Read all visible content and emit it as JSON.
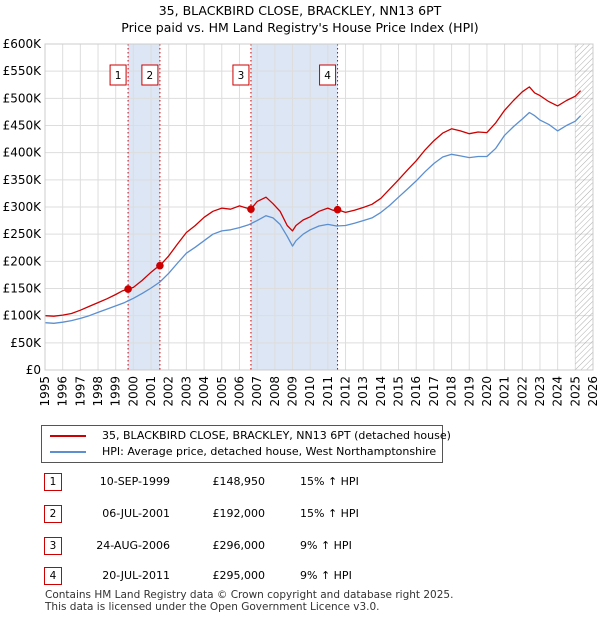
{
  "title": {
    "line1": "35, BLACKBIRD CLOSE, BRACKLEY, NN13 6PT",
    "line2": "Price paid vs. HM Land Registry's House Price Index (HPI)"
  },
  "colors": {
    "property_line": "#cc0000",
    "hpi_line": "#5b8fd0",
    "shade": "#dce6f5",
    "grid": "#dddddd",
    "marker_border": "#cc0000",
    "future_hatch": "#999999"
  },
  "chart_data": {
    "type": "line",
    "title": "Price paid vs. HM Land Registry's House Price Index (HPI)",
    "xlabel": "",
    "ylabel": "",
    "xlim": [
      1995,
      2026
    ],
    "ylim": [
      0,
      600000
    ],
    "x_ticks": [
      "1995",
      "1996",
      "1997",
      "1998",
      "1999",
      "2000",
      "2001",
      "2002",
      "2003",
      "2004",
      "2005",
      "2006",
      "2007",
      "2008",
      "2009",
      "2010",
      "2011",
      "2012",
      "2013",
      "2014",
      "2015",
      "2016",
      "2017",
      "2018",
      "2019",
      "2020",
      "2021",
      "2022",
      "2023",
      "2024",
      "2025",
      "2026"
    ],
    "y_ticks": [
      {
        "value": 0,
        "label": "£0"
      },
      {
        "value": 50000,
        "label": "£50K"
      },
      {
        "value": 100000,
        "label": "£100K"
      },
      {
        "value": 150000,
        "label": "£150K"
      },
      {
        "value": 200000,
        "label": "£200K"
      },
      {
        "value": 250000,
        "label": "£250K"
      },
      {
        "value": 300000,
        "label": "£300K"
      },
      {
        "value": 350000,
        "label": "£350K"
      },
      {
        "value": 400000,
        "label": "£400K"
      },
      {
        "value": 450000,
        "label": "£450K"
      },
      {
        "value": 500000,
        "label": "£500K"
      },
      {
        "value": 550000,
        "label": "£550K"
      },
      {
        "value": 600000,
        "label": "£600K"
      }
    ],
    "grid": true,
    "series": [
      {
        "name": "35, BLACKBIRD CLOSE, BRACKLEY, NN13 6PT (detached house)",
        "x": [
          1995.0,
          1995.5,
          1996.0,
          1996.5,
          1997.0,
          1997.5,
          1998.0,
          1998.5,
          1999.0,
          1999.4,
          1999.7,
          2000.0,
          2000.5,
          2001.0,
          2001.3,
          2001.5,
          2002.0,
          2002.5,
          2003.0,
          2003.5,
          2004.0,
          2004.5,
          2005.0,
          2005.5,
          2006.0,
          2006.3,
          2006.65,
          2007.0,
          2007.5,
          2007.9,
          2008.3,
          2008.7,
          2009.0,
          2009.2,
          2009.6,
          2010.0,
          2010.5,
          2011.0,
          2011.3,
          2011.55,
          2012.0,
          2012.5,
          2013.0,
          2013.5,
          2014.0,
          2014.5,
          2015.0,
          2015.5,
          2016.0,
          2016.5,
          2017.0,
          2017.5,
          2018.0,
          2018.5,
          2019.0,
          2019.5,
          2020.0,
          2020.5,
          2021.0,
          2021.5,
          2022.0,
          2022.4,
          2022.7,
          2023.0,
          2023.5,
          2024.0,
          2024.5,
          2025.0,
          2025.3
        ],
        "values": [
          100000,
          99000,
          101000,
          104000,
          110000,
          117000,
          124000,
          131000,
          139000,
          146000,
          148950,
          152000,
          165000,
          180000,
          188000,
          192000,
          210000,
          232000,
          253000,
          266000,
          281000,
          292000,
          298000,
          296000,
          302000,
          299000,
          296000,
          310000,
          318000,
          306000,
          292000,
          266000,
          256000,
          266000,
          276000,
          282000,
          292000,
          298000,
          294000,
          295000,
          290000,
          294000,
          299000,
          305000,
          316000,
          333000,
          350000,
          368000,
          385000,
          405000,
          422000,
          436000,
          444000,
          440000,
          435000,
          438000,
          437000,
          455000,
          478000,
          496000,
          512000,
          521000,
          510000,
          505000,
          494000,
          486000,
          496000,
          504000,
          514000
        ]
      },
      {
        "name": "HPI: Average price, detached house, West Northamptonshire",
        "x": [
          1995.0,
          1995.5,
          1996.0,
          1996.5,
          1997.0,
          1997.5,
          1998.0,
          1998.5,
          1999.0,
          1999.5,
          2000.0,
          2000.5,
          2001.0,
          2001.5,
          2002.0,
          2002.5,
          2003.0,
          2003.5,
          2004.0,
          2004.5,
          2005.0,
          2005.5,
          2006.0,
          2006.5,
          2007.0,
          2007.5,
          2007.9,
          2008.3,
          2008.7,
          2009.0,
          2009.2,
          2009.6,
          2010.0,
          2010.5,
          2011.0,
          2011.5,
          2012.0,
          2012.5,
          2013.0,
          2013.5,
          2014.0,
          2014.5,
          2015.0,
          2015.5,
          2016.0,
          2016.5,
          2017.0,
          2017.5,
          2018.0,
          2018.5,
          2019.0,
          2019.5,
          2020.0,
          2020.5,
          2021.0,
          2021.5,
          2022.0,
          2022.4,
          2022.7,
          2023.0,
          2023.5,
          2024.0,
          2024.5,
          2025.0,
          2025.3
        ],
        "values": [
          87000,
          86000,
          88000,
          91000,
          95000,
          100000,
          106000,
          112000,
          118000,
          124000,
          132000,
          141000,
          151000,
          162000,
          178000,
          197000,
          215000,
          226000,
          238000,
          250000,
          256000,
          258000,
          262000,
          267000,
          275000,
          284000,
          280000,
          268000,
          246000,
          228000,
          238000,
          250000,
          258000,
          265000,
          268000,
          265000,
          266000,
          270000,
          275000,
          280000,
          290000,
          303000,
          318000,
          333000,
          348000,
          365000,
          380000,
          392000,
          397000,
          394000,
          391000,
          393000,
          393000,
          408000,
          432000,
          448000,
          462000,
          474000,
          468000,
          460000,
          452000,
          440000,
          450000,
          458000,
          468000
        ]
      }
    ],
    "transactions": [
      {
        "id": "1",
        "x": 1999.7,
        "value": 148950
      },
      {
        "id": "2",
        "x": 2001.5,
        "value": 192000
      },
      {
        "id": "3",
        "x": 2006.65,
        "value": 296000
      },
      {
        "id": "4",
        "x": 2011.55,
        "value": 295000
      }
    ],
    "shaded_ranges": [
      [
        1999.7,
        2001.5
      ],
      [
        2006.65,
        2011.55
      ]
    ],
    "future_from": 2025.0
  },
  "legend": {
    "property": "35, BLACKBIRD CLOSE, BRACKLEY, NN13 6PT (detached house)",
    "hpi": "HPI: Average price, detached house, West Northamptonshire"
  },
  "table": [
    {
      "num": "1",
      "date": "10-SEP-1999",
      "price": "£148,950",
      "hpi": "15% ↑ HPI"
    },
    {
      "num": "2",
      "date": "06-JUL-2001",
      "price": "£192,000",
      "hpi": "15% ↑ HPI"
    },
    {
      "num": "3",
      "date": "24-AUG-2006",
      "price": "£296,000",
      "hpi": "9% ↑ HPI"
    },
    {
      "num": "4",
      "date": "20-JUL-2011",
      "price": "£295,000",
      "hpi": "9% ↑ HPI"
    }
  ],
  "footer": {
    "line1": "Contains HM Land Registry data © Crown copyright and database right 2025.",
    "line2": "This data is licensed under the Open Government Licence v3.0."
  }
}
